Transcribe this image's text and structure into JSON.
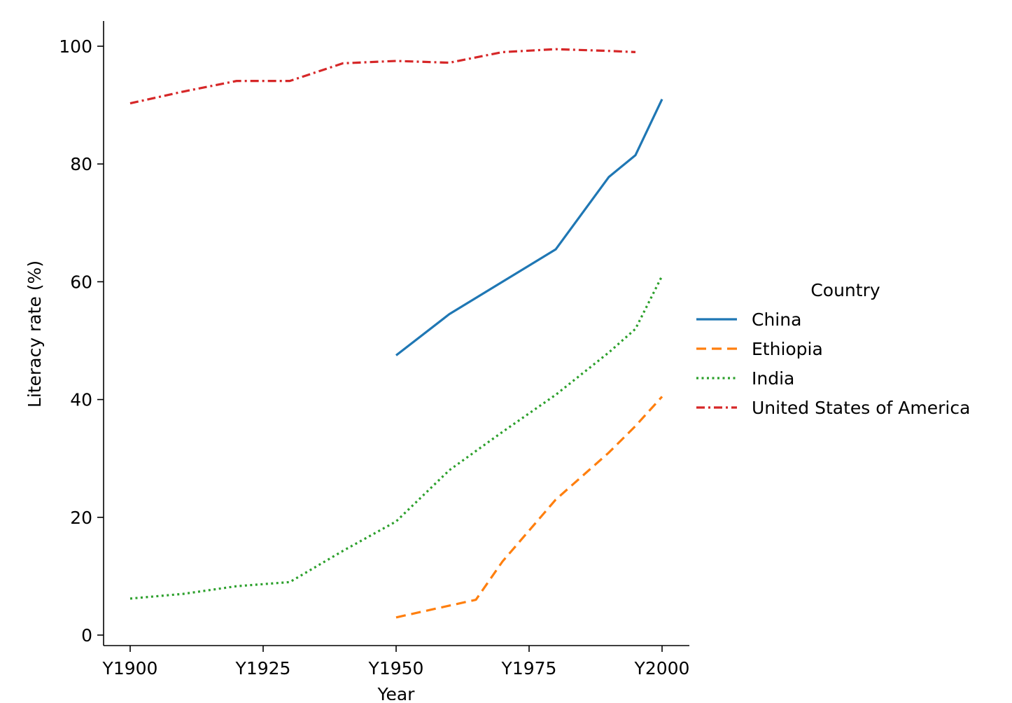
{
  "chart_data": {
    "type": "line",
    "title": "",
    "xlabel": "Year",
    "ylabel": "Literacy rate (%)",
    "xlim": [
      1895,
      2005
    ],
    "ylim": [
      -2,
      104.5
    ],
    "x_ticks": [
      1900,
      1925,
      1950,
      1975,
      2000
    ],
    "x_tick_labels": [
      "Y1900",
      "Y1925",
      "Y1950",
      "Y1975",
      "Y2000"
    ],
    "y_ticks": [
      0,
      20,
      40,
      60,
      80,
      100
    ],
    "y_tick_labels": [
      "0",
      "20",
      "40",
      "60",
      "80",
      "100"
    ],
    "grid": false,
    "legend": {
      "title": "Country",
      "placement": "center-right, outside"
    },
    "series": [
      {
        "name": "China",
        "color": "#1f77b4",
        "dash": "solid",
        "points": [
          [
            1950,
            47.5
          ],
          [
            1960,
            54.5
          ],
          [
            1970,
            60
          ],
          [
            1980,
            65.5
          ],
          [
            1990,
            77.8
          ],
          [
            1995,
            81.5
          ],
          [
            2000,
            91
          ]
        ]
      },
      {
        "name": "Ethiopia",
        "color": "#ff7f0e",
        "dash": "dashed",
        "points": [
          [
            1950,
            3
          ],
          [
            1960,
            5
          ],
          [
            1965,
            6
          ],
          [
            1970,
            12.5
          ],
          [
            1980,
            23
          ],
          [
            1990,
            31
          ],
          [
            1995,
            35.5
          ],
          [
            2000,
            40.5
          ]
        ]
      },
      {
        "name": "India",
        "color": "#2ca02c",
        "dash": "dotted",
        "points": [
          [
            1900,
            6.2
          ],
          [
            1910,
            7
          ],
          [
            1920,
            8.3
          ],
          [
            1930,
            9
          ],
          [
            1940,
            14.3
          ],
          [
            1950,
            19.3
          ],
          [
            1960,
            28
          ],
          [
            1970,
            34.5
          ],
          [
            1980,
            40.8
          ],
          [
            1990,
            48
          ],
          [
            1995,
            52
          ],
          [
            2000,
            61
          ]
        ]
      },
      {
        "name": "United States of America",
        "color": "#d62728",
        "dash": "dashdot",
        "points": [
          [
            1900,
            90.3
          ],
          [
            1910,
            92.3
          ],
          [
            1920,
            94.1
          ],
          [
            1930,
            94.1
          ],
          [
            1940,
            97.1
          ],
          [
            1950,
            97.5
          ],
          [
            1960,
            97.2
          ],
          [
            1970,
            99
          ],
          [
            1980,
            99.5
          ],
          [
            1990,
            99.2
          ],
          [
            1995,
            99
          ]
        ]
      }
    ]
  }
}
